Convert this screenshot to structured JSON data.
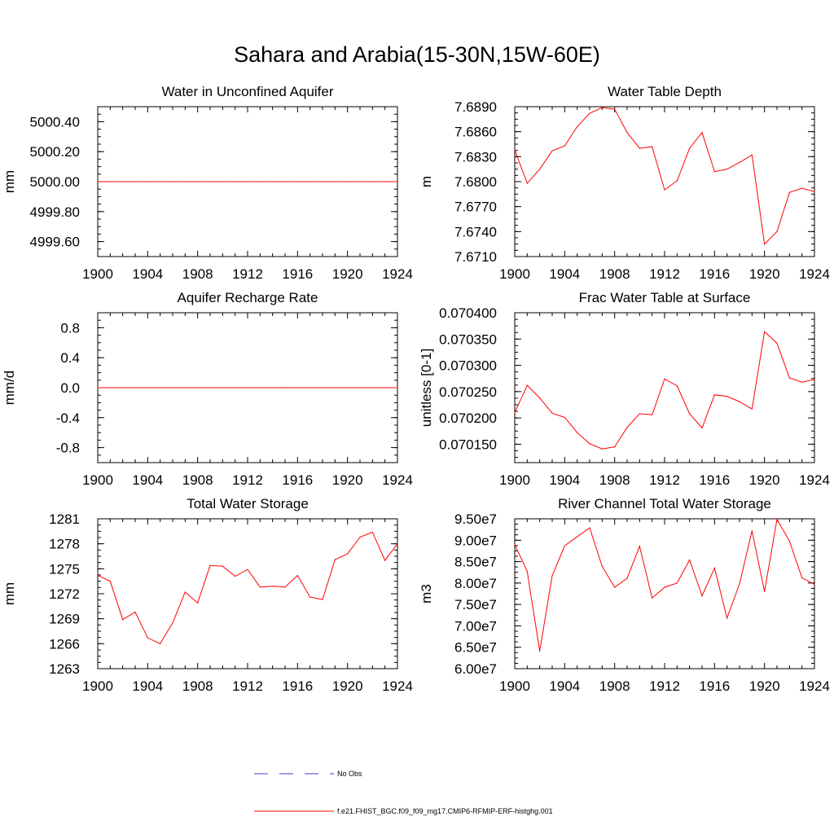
{
  "title": "Sahara and Arabia(15-30N,15W-60E)",
  "series_color": "#ff0000",
  "legend": [
    {
      "label": "No Obs",
      "style": "dashed",
      "color": "#3b3bd6"
    },
    {
      "label": "f.e21.FHIST_BGC.f09_f09_mg17.CMIP6-RFMIP-ERF-histghg.001",
      "style": "solid",
      "color": "#ff0000"
    }
  ],
  "chart_data": [
    {
      "type": "line",
      "title": "Water in Unconfined Aquifer",
      "ylabel": "mm",
      "xlim": [
        1900,
        1924
      ],
      "ylim": [
        4999.5,
        5000.5
      ],
      "x_ticks": [
        "1900",
        "1904",
        "1908",
        "1912",
        "1916",
        "1920",
        "1924"
      ],
      "y_ticks": [
        4999.6,
        4999.8,
        5000.0,
        5000.2,
        5000.4
      ],
      "y_tick_labels": [
        "4999.60",
        "4999.80",
        "5000.00",
        "5000.20",
        "5000.40"
      ],
      "x": [
        1900,
        1901,
        1902,
        1903,
        1904,
        1905,
        1906,
        1907,
        1908,
        1909,
        1910,
        1911,
        1912,
        1913,
        1914,
        1915,
        1916,
        1917,
        1918,
        1919,
        1920,
        1921,
        1922,
        1923,
        1924
      ],
      "values": [
        5000,
        5000,
        5000,
        5000,
        5000,
        5000,
        5000,
        5000,
        5000,
        5000,
        5000,
        5000,
        5000,
        5000,
        5000,
        5000,
        5000,
        5000,
        5000,
        5000,
        5000,
        5000,
        5000,
        5000,
        5000
      ]
    },
    {
      "type": "line",
      "title": "Water Table Depth",
      "ylabel": "m",
      "xlim": [
        1900,
        1924
      ],
      "ylim": [
        7.671,
        7.689
      ],
      "x_ticks": [
        "1900",
        "1904",
        "1908",
        "1912",
        "1916",
        "1920",
        "1924"
      ],
      "y_ticks": [
        7.671,
        7.674,
        7.677,
        7.68,
        7.683,
        7.686,
        7.689
      ],
      "y_tick_labels": [
        "7.6710",
        "7.6740",
        "7.6770",
        "7.6800",
        "7.6830",
        "7.6860",
        "7.6890"
      ],
      "x": [
        1900,
        1901,
        1902,
        1903,
        1904,
        1905,
        1906,
        1907,
        1908,
        1909,
        1910,
        1911,
        1912,
        1913,
        1914,
        1915,
        1916,
        1917,
        1918,
        1919,
        1920,
        1921,
        1922,
        1923,
        1924
      ],
      "values": [
        7.6838,
        7.6798,
        7.6815,
        7.6837,
        7.6843,
        7.6866,
        7.6882,
        7.6889,
        7.6887,
        7.6859,
        7.684,
        7.6842,
        7.679,
        7.6801,
        7.684,
        7.6859,
        7.6812,
        7.6815,
        7.6823,
        7.6832,
        7.6725,
        7.674,
        7.6787,
        7.6792,
        7.6788
      ]
    },
    {
      "type": "line",
      "title": "Aquifer Recharge Rate",
      "ylabel": "mm/d",
      "xlim": [
        1900,
        1924
      ],
      "ylim": [
        -1.0,
        1.0
      ],
      "x_ticks": [
        "1900",
        "1904",
        "1908",
        "1912",
        "1916",
        "1920",
        "1924"
      ],
      "y_ticks": [
        -0.8,
        -0.4,
        0.0,
        0.4,
        0.8
      ],
      "y_tick_labels": [
        "-0.8",
        "-0.4",
        "0.0",
        "0.4",
        "0.8"
      ],
      "x": [
        1900,
        1901,
        1902,
        1903,
        1904,
        1905,
        1906,
        1907,
        1908,
        1909,
        1910,
        1911,
        1912,
        1913,
        1914,
        1915,
        1916,
        1917,
        1918,
        1919,
        1920,
        1921,
        1922,
        1923,
        1924
      ],
      "values": [
        0,
        0,
        0,
        0,
        0,
        0,
        0,
        0,
        0,
        0,
        0,
        0,
        0,
        0,
        0,
        0,
        0,
        0,
        0,
        0,
        0,
        0,
        0,
        0,
        0
      ]
    },
    {
      "type": "line",
      "title": "Frac Water Table at Surface",
      "ylabel": "unitless [0-1]",
      "xlim": [
        1900,
        1924
      ],
      "ylim": [
        0.070115,
        0.0704
      ],
      "x_ticks": [
        "1900",
        "1904",
        "1908",
        "1912",
        "1916",
        "1920",
        "1924"
      ],
      "y_ticks": [
        0.07015,
        0.0702,
        0.07025,
        0.0703,
        0.07035,
        0.0704
      ],
      "y_tick_labels": [
        "0.070150",
        "0.070200",
        "0.070250",
        "0.070300",
        "0.070350",
        "0.070400"
      ],
      "x": [
        1900,
        1901,
        1902,
        1903,
        1904,
        1905,
        1906,
        1907,
        1908,
        1909,
        1910,
        1911,
        1912,
        1913,
        1914,
        1915,
        1916,
        1917,
        1918,
        1919,
        1920,
        1921,
        1922,
        1923,
        1924
      ],
      "values": [
        0.07021,
        0.070262,
        0.070238,
        0.070209,
        0.070201,
        0.070172,
        0.070151,
        0.070141,
        0.070145,
        0.070182,
        0.070208,
        0.070206,
        0.070274,
        0.070261,
        0.070208,
        0.070181,
        0.070244,
        0.070241,
        0.070231,
        0.070217,
        0.070364,
        0.070342,
        0.070276,
        0.070268,
        0.070273
      ]
    },
    {
      "type": "line",
      "title": "Total Water Storage",
      "ylabel": "mm",
      "xlim": [
        1900,
        1924
      ],
      "ylim": [
        1263,
        1281
      ],
      "x_ticks": [
        "1900",
        "1904",
        "1908",
        "1912",
        "1916",
        "1920",
        "1924"
      ],
      "y_ticks": [
        1263,
        1266,
        1269,
        1272,
        1275,
        1278,
        1281
      ],
      "y_tick_labels": [
        "1263",
        "1266",
        "1269",
        "1272",
        "1275",
        "1278",
        "1281"
      ],
      "x": [
        1900,
        1901,
        1902,
        1903,
        1904,
        1905,
        1906,
        1907,
        1908,
        1909,
        1910,
        1911,
        1912,
        1913,
        1914,
        1915,
        1916,
        1917,
        1918,
        1919,
        1920,
        1921,
        1922,
        1923,
        1924
      ],
      "values": [
        1274.2,
        1273.5,
        1268.9,
        1269.8,
        1266.7,
        1266.0,
        1268.5,
        1272.2,
        1270.9,
        1275.4,
        1275.3,
        1274.1,
        1274.9,
        1272.8,
        1272.9,
        1272.8,
        1274.2,
        1271.6,
        1271.3,
        1276.1,
        1276.8,
        1278.8,
        1279.4,
        1276.0,
        1278.0
      ]
    },
    {
      "type": "line",
      "title": "River Channel Total Water Storage",
      "ylabel": "m3",
      "xlim": [
        1900,
        1924
      ],
      "ylim": [
        60000000,
        95000000
      ],
      "x_ticks": [
        "1900",
        "1904",
        "1908",
        "1912",
        "1916",
        "1920",
        "1924"
      ],
      "y_ticks": [
        60000000,
        65000000,
        70000000,
        75000000,
        80000000,
        85000000,
        90000000,
        95000000
      ],
      "y_tick_labels": [
        "6.00e7",
        "6.50e7",
        "7.00e7",
        "7.50e7",
        "8.00e7",
        "8.50e7",
        "9.00e7",
        "9.50e7"
      ],
      "x": [
        1900,
        1901,
        1902,
        1903,
        1904,
        1905,
        1906,
        1907,
        1908,
        1909,
        1910,
        1911,
        1912,
        1913,
        1914,
        1915,
        1916,
        1917,
        1918,
        1919,
        1920,
        1921,
        1922,
        1923,
        1924
      ],
      "values": [
        89000000,
        82700000,
        64100000,
        81700000,
        88700000,
        90800000,
        92900000,
        83900000,
        79000000,
        81100000,
        88600000,
        76500000,
        79000000,
        80000000,
        85400000,
        77000000,
        83500000,
        71800000,
        79800000,
        92200000,
        78000000,
        94900000,
        89800000,
        81200000,
        79700000
      ]
    }
  ]
}
